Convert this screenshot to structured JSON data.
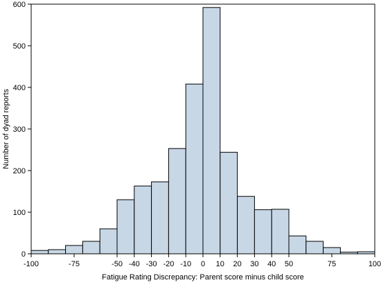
{
  "chart_data": {
    "type": "bar",
    "subtype": "histogram",
    "title": "",
    "xlabel": "Fatigue Rating Discrepancy: Parent score minus child score",
    "ylabel": "Number of dyad reports",
    "xlim": [
      -100,
      100
    ],
    "ylim": [
      0,
      600
    ],
    "grid": false,
    "legend": "none",
    "bar_color": "#c8d7e6",
    "edge_color": "#000000",
    "xticks": [
      {
        "value": -100,
        "label": "-100"
      },
      {
        "value": -75,
        "label": "-75"
      },
      {
        "value": -50,
        "label": "-50"
      },
      {
        "value": -40,
        "label": "-40"
      },
      {
        "value": -30,
        "label": "-30"
      },
      {
        "value": -20,
        "label": "-20"
      },
      {
        "value": -10,
        "label": "-10"
      },
      {
        "value": 0,
        "label": "0"
      },
      {
        "value": 10,
        "label": "10"
      },
      {
        "value": 20,
        "label": "20"
      },
      {
        "value": 30,
        "label": "30"
      },
      {
        "value": 40,
        "label": "40"
      },
      {
        "value": 50,
        "label": "50"
      },
      {
        "value": 75,
        "label": "75"
      },
      {
        "value": 100,
        "label": "100"
      }
    ],
    "yticks": [
      {
        "value": 0,
        "label": "0"
      },
      {
        "value": 100,
        "label": "100"
      },
      {
        "value": 200,
        "label": "200"
      },
      {
        "value": 300,
        "label": "300"
      },
      {
        "value": 400,
        "label": "400"
      },
      {
        "value": 500,
        "label": "500"
      },
      {
        "value": 600,
        "label": "600"
      }
    ],
    "bins": [
      {
        "x0": -100,
        "x1": -90,
        "count": 8
      },
      {
        "x0": -90,
        "x1": -80,
        "count": 10
      },
      {
        "x0": -80,
        "x1": -70,
        "count": 20
      },
      {
        "x0": -70,
        "x1": -60,
        "count": 30
      },
      {
        "x0": -60,
        "x1": -50,
        "count": 60
      },
      {
        "x0": -50,
        "x1": -40,
        "count": 130
      },
      {
        "x0": -40,
        "x1": -30,
        "count": 163
      },
      {
        "x0": -30,
        "x1": -20,
        "count": 173
      },
      {
        "x0": -20,
        "x1": -10,
        "count": 253
      },
      {
        "x0": -10,
        "x1": 0,
        "count": 408
      },
      {
        "x0": 0,
        "x1": 10,
        "count": 592
      },
      {
        "x0": 10,
        "x1": 20,
        "count": 244
      },
      {
        "x0": 20,
        "x1": 30,
        "count": 138
      },
      {
        "x0": 30,
        "x1": 40,
        "count": 106
      },
      {
        "x0": 40,
        "x1": 50,
        "count": 107
      },
      {
        "x0": 50,
        "x1": 60,
        "count": 43
      },
      {
        "x0": 60,
        "x1": 70,
        "count": 30
      },
      {
        "x0": 70,
        "x1": 80,
        "count": 15
      },
      {
        "x0": 80,
        "x1": 90,
        "count": 4
      },
      {
        "x0": 90,
        "x1": 100,
        "count": 5
      }
    ]
  }
}
